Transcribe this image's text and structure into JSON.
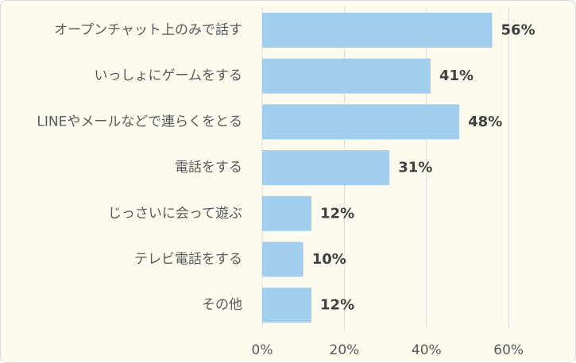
{
  "chart_data": {
    "type": "bar",
    "orientation": "horizontal",
    "categories": [
      "オープンチャット上のみで話す",
      "いっしょにゲームをする",
      "LINEやメールなどで連らくをとる",
      "電話をする",
      "じっさいに会って遊ぶ",
      "テレビ電話をする",
      "その他"
    ],
    "values": [
      56,
      41,
      48,
      31,
      12,
      10,
      12
    ],
    "data_labels": [
      "56%",
      "41%",
      "48%",
      "31%",
      "12%",
      "10%",
      "12%"
    ],
    "x_ticks": [
      0,
      20,
      40,
      60
    ],
    "x_tick_labels": [
      "0%",
      "20%",
      "40%",
      "60%"
    ],
    "xlim": [
      0,
      60
    ],
    "grid": "vertical",
    "legend": "none",
    "title": "",
    "xlabel": "",
    "ylabel": ""
  },
  "colors": {
    "background": "#fdfbee",
    "bar": "#a3cfef",
    "grid": "#d9d9d9"
  }
}
